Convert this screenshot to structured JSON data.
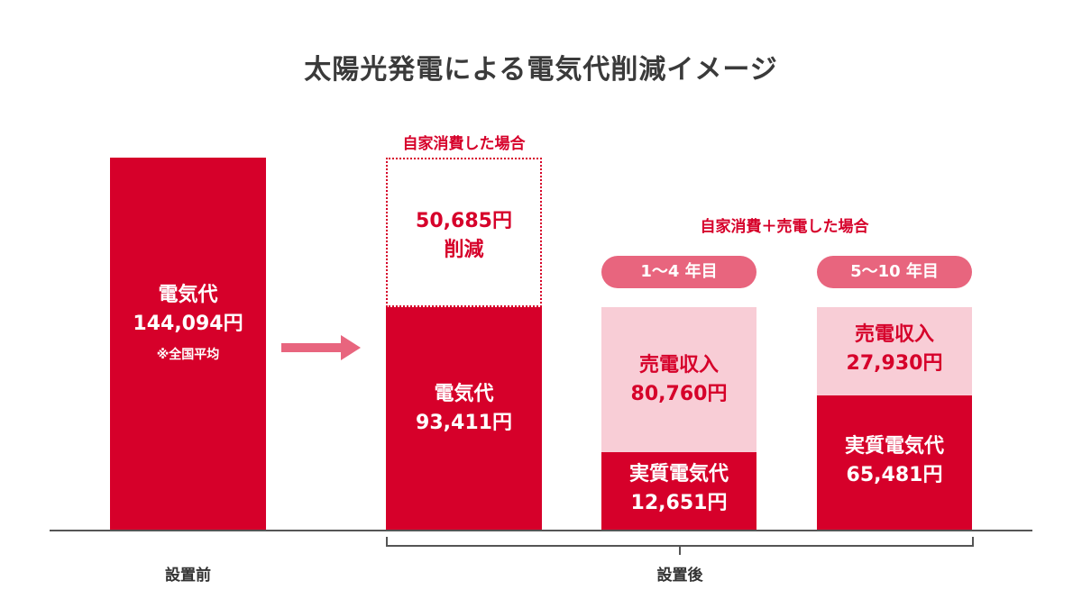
{
  "title": "太陽光発電による電気代削減イメージ",
  "chart_data": {
    "type": "bar",
    "categories": [
      "設置前",
      "設置後：自家消費した場合",
      "設置後：自家消費＋売電した場合（1〜4年目）",
      "設置後：自家消費＋売電した場合（5〜10年目）"
    ],
    "series": [
      {
        "name": "電気代",
        "values": [
          144094,
          93411,
          null,
          null
        ]
      },
      {
        "name": "削減",
        "values": [
          null,
          50685,
          null,
          null
        ]
      },
      {
        "name": "実質電気代",
        "values": [
          null,
          null,
          12651,
          65481
        ]
      },
      {
        "name": "売電収入",
        "values": [
          null,
          null,
          80760,
          27930
        ]
      }
    ],
    "ylim": [
      0,
      144094
    ]
  },
  "bars": {
    "before": {
      "label": "電気代",
      "value": "144,094円",
      "note": "※全国平均"
    },
    "self": {
      "caption": "自家消費した場合",
      "saving_value": "50,685円",
      "saving_label": "削減",
      "label": "電気代",
      "value": "93,411円"
    },
    "sell_caption": "自家消費＋売電した場合",
    "sell_1_4": {
      "pill": "1〜4 年目",
      "income_label": "売電収入",
      "income_value": "80,760円",
      "net_label": "実質電気代",
      "net_value": "12,651円"
    },
    "sell_5_10": {
      "pill": "5〜10 年目",
      "income_label": "売電収入",
      "income_value": "27,930円",
      "net_label": "実質電気代",
      "net_value": "65,481円"
    }
  },
  "xlabels": {
    "before": "設置前",
    "after": "設置後"
  },
  "colors": {
    "red": "#d6002a",
    "pink": "#f8cdd6",
    "pill": "#e8657e",
    "arrow": "#e8657e"
  }
}
